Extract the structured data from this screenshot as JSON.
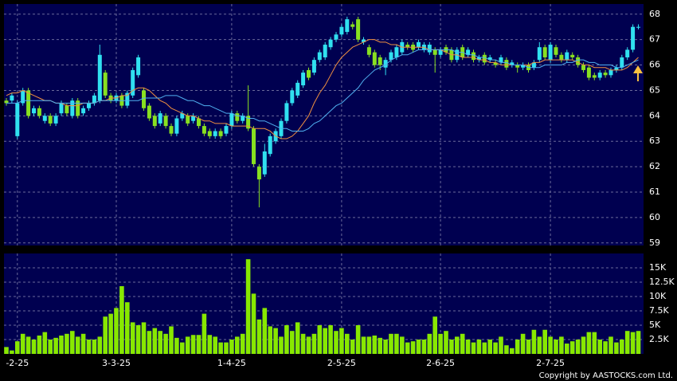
{
  "chart_data": [
    {
      "type": "candlestick",
      "categories": [
        null,
        null,
        "-2-25",
        null,
        null,
        null,
        null,
        null,
        null,
        null,
        null,
        null,
        null,
        null,
        null,
        null,
        null,
        null,
        null,
        null,
        "3-3-25",
        null,
        null,
        null,
        null,
        null,
        null,
        null,
        null,
        null,
        null,
        null,
        null,
        null,
        null,
        null,
        null,
        null,
        null,
        null,
        null,
        "1-4-25",
        null,
        null,
        null,
        null,
        null,
        null,
        null,
        null,
        null,
        null,
        null,
        null,
        null,
        null,
        null,
        null,
        null,
        null,
        null,
        "2-5-25",
        null,
        null,
        null,
        null,
        null,
        null,
        null,
        null,
        null,
        null,
        null,
        null,
        null,
        null,
        null,
        null,
        null,
        "2-6-25",
        null,
        null,
        null,
        null,
        null,
        null,
        null,
        null,
        null,
        null,
        null,
        null,
        null,
        null,
        null,
        null,
        null,
        null,
        null,
        "2-7-25",
        null,
        null,
        null,
        null,
        null,
        null,
        null,
        null,
        null,
        null,
        null,
        null,
        null,
        null,
        null,
        null
      ],
      "ohlc": [
        [
          64.6,
          64.7,
          64.4,
          64.5
        ],
        [
          64.6,
          64.9,
          64.5,
          64.8
        ],
        [
          63.2,
          64.6,
          63.1,
          64.5
        ],
        [
          64.5,
          65.1,
          64.4,
          65.0
        ],
        [
          65.0,
          65.1,
          63.9,
          64.0
        ],
        [
          64.1,
          64.4,
          64.0,
          64.3
        ],
        [
          64.3,
          64.4,
          63.9,
          64.0
        ],
        [
          63.8,
          64.1,
          63.7,
          64.0
        ],
        [
          64.0,
          64.1,
          63.6,
          63.7
        ],
        [
          63.7,
          64.1,
          63.6,
          64.0
        ],
        [
          64.1,
          64.6,
          64.0,
          64.5
        ],
        [
          64.4,
          64.5,
          64.0,
          64.1
        ],
        [
          64.0,
          64.7,
          63.9,
          64.6
        ],
        [
          64.6,
          64.7,
          63.9,
          64.0
        ],
        [
          64.1,
          64.4,
          64.0,
          64.3
        ],
        [
          64.3,
          64.6,
          64.2,
          64.5
        ],
        [
          64.5,
          64.9,
          64.4,
          64.8
        ],
        [
          64.6,
          66.8,
          64.5,
          66.4
        ],
        [
          65.7,
          65.8,
          64.7,
          64.8
        ],
        [
          64.8,
          64.9,
          64.5,
          64.6
        ],
        [
          64.6,
          64.9,
          64.5,
          64.8
        ],
        [
          64.8,
          64.9,
          64.3,
          64.4
        ],
        [
          64.4,
          65.0,
          64.3,
          64.9
        ],
        [
          64.8,
          65.9,
          64.7,
          65.8
        ],
        [
          65.6,
          66.4,
          65.5,
          66.3
        ],
        [
          65.0,
          65.1,
          64.2,
          64.3
        ],
        [
          64.4,
          64.5,
          63.8,
          63.9
        ],
        [
          64.0,
          64.1,
          63.5,
          63.6
        ],
        [
          63.7,
          64.2,
          63.6,
          64.1
        ],
        [
          64.0,
          64.1,
          63.5,
          63.6
        ],
        [
          63.6,
          63.7,
          63.2,
          63.3
        ],
        [
          63.3,
          64.0,
          63.2,
          63.9
        ],
        [
          63.9,
          64.2,
          63.8,
          64.1
        ],
        [
          64.0,
          64.1,
          63.6,
          63.7
        ],
        [
          63.8,
          64.1,
          63.7,
          64.0
        ],
        [
          63.9,
          64.0,
          63.5,
          63.6
        ],
        [
          63.6,
          63.7,
          63.2,
          63.3
        ],
        [
          63.4,
          63.5,
          63.1,
          63.2
        ],
        [
          63.2,
          63.5,
          63.1,
          63.4
        ],
        [
          63.4,
          63.5,
          63.1,
          63.2
        ],
        [
          63.3,
          63.7,
          63.2,
          63.6
        ],
        [
          63.6,
          64.2,
          63.5,
          64.1
        ],
        [
          64.1,
          64.2,
          63.7,
          63.8
        ],
        [
          63.8,
          64.1,
          63.7,
          64.0
        ],
        [
          64.0,
          65.2,
          63.4,
          63.5
        ],
        [
          63.5,
          63.6,
          62.0,
          62.1
        ],
        [
          62.0,
          62.1,
          60.4,
          61.5
        ],
        [
          61.7,
          62.9,
          61.6,
          62.6
        ],
        [
          62.5,
          63.3,
          62.4,
          63.2
        ],
        [
          63.0,
          63.5,
          62.9,
          63.4
        ],
        [
          63.2,
          63.9,
          63.1,
          63.8
        ],
        [
          63.8,
          64.6,
          63.7,
          64.5
        ],
        [
          64.5,
          65.1,
          64.4,
          65.0
        ],
        [
          64.8,
          65.4,
          64.7,
          65.3
        ],
        [
          65.2,
          65.8,
          65.1,
          65.7
        ],
        [
          65.8,
          65.9,
          65.4,
          65.5
        ],
        [
          65.7,
          66.3,
          65.6,
          66.2
        ],
        [
          66.2,
          66.6,
          66.1,
          66.5
        ],
        [
          66.3,
          66.9,
          66.2,
          66.8
        ],
        [
          66.7,
          67.1,
          66.6,
          67.0
        ],
        [
          67.0,
          67.3,
          66.9,
          67.2
        ],
        [
          67.2,
          67.6,
          67.1,
          67.5
        ],
        [
          67.3,
          67.9,
          67.2,
          67.8
        ],
        [
          67.6,
          67.7,
          67.4,
          67.5
        ],
        [
          67.8,
          67.9,
          66.9,
          67.0
        ],
        [
          66.9,
          67.1,
          66.8,
          67.0
        ],
        [
          66.7,
          66.8,
          66.3,
          66.4
        ],
        [
          66.5,
          66.6,
          65.9,
          66.0
        ],
        [
          66.3,
          66.4,
          65.8,
          66.0
        ],
        [
          65.9,
          66.3,
          65.6,
          66.2
        ],
        [
          66.2,
          66.6,
          66.1,
          66.5
        ],
        [
          66.3,
          66.8,
          66.2,
          66.7
        ],
        [
          66.5,
          67.0,
          66.4,
          66.9
        ],
        [
          66.8,
          66.9,
          66.6,
          66.7
        ],
        [
          66.8,
          66.9,
          66.5,
          66.6
        ],
        [
          66.7,
          67.0,
          66.6,
          66.9
        ],
        [
          66.6,
          66.9,
          66.5,
          66.8
        ],
        [
          66.5,
          66.9,
          66.4,
          66.8
        ],
        [
          66.6,
          66.7,
          65.7,
          66.4
        ],
        [
          66.4,
          66.7,
          66.3,
          66.6
        ],
        [
          66.7,
          66.8,
          66.4,
          66.5
        ],
        [
          66.6,
          66.7,
          66.1,
          66.2
        ],
        [
          66.2,
          66.7,
          66.1,
          66.6
        ],
        [
          66.7,
          66.8,
          66.2,
          66.3
        ],
        [
          66.4,
          66.7,
          66.3,
          66.6
        ],
        [
          66.5,
          66.6,
          66.1,
          66.2
        ],
        [
          66.2,
          66.4,
          66.1,
          66.3
        ],
        [
          66.4,
          66.5,
          66.0,
          66.1
        ],
        [
          66.2,
          66.4,
          66.1,
          66.3
        ],
        [
          66.1,
          66.2,
          65.9,
          66.0
        ],
        [
          66.1,
          66.4,
          66.0,
          66.3
        ],
        [
          66.2,
          66.3,
          65.8,
          65.9
        ],
        [
          66.0,
          66.2,
          65.9,
          66.1
        ],
        [
          66.0,
          66.1,
          65.7,
          65.9
        ],
        [
          65.9,
          66.1,
          65.8,
          66.0
        ],
        [
          66.0,
          66.1,
          65.7,
          65.8
        ],
        [
          65.9,
          66.2,
          65.8,
          66.1
        ],
        [
          66.2,
          66.9,
          66.1,
          66.7
        ],
        [
          66.7,
          66.8,
          66.2,
          66.3
        ],
        [
          66.2,
          66.9,
          66.1,
          66.8
        ],
        [
          66.7,
          66.8,
          66.3,
          66.4
        ],
        [
          66.4,
          66.5,
          66.1,
          66.2
        ],
        [
          66.2,
          66.6,
          66.1,
          66.5
        ],
        [
          66.4,
          66.5,
          66.2,
          66.3
        ],
        [
          66.3,
          66.4,
          65.9,
          66.0
        ],
        [
          66.0,
          66.1,
          65.7,
          65.8
        ],
        [
          65.9,
          66.0,
          65.4,
          65.5
        ],
        [
          65.6,
          65.7,
          65.4,
          65.5
        ],
        [
          65.5,
          65.8,
          65.4,
          65.7
        ],
        [
          65.7,
          65.8,
          65.5,
          65.6
        ],
        [
          65.6,
          65.9,
          65.5,
          65.8
        ],
        [
          65.8,
          66.0,
          65.7,
          65.9
        ],
        [
          65.9,
          66.4,
          65.8,
          66.3
        ],
        [
          66.3,
          66.7,
          66.2,
          66.6
        ],
        [
          66.6,
          67.6,
          66.5,
          67.5
        ],
        [
          67.5,
          67.6,
          67.4,
          67.5
        ]
      ],
      "up_color": "#30e0f0",
      "down_color": "#88e020",
      "series": [
        {
          "color": "#f09040",
          "values": [
            64.8,
            64.9,
            64.9,
            65.0,
            64.9,
            64.8,
            64.7,
            64.6,
            64.6,
            64.5,
            64.5,
            64.4,
            64.4,
            64.4,
            64.5,
            64.5,
            64.5,
            64.6,
            64.6,
            64.7,
            64.7,
            64.8,
            64.8,
            65.0,
            65.1,
            65.1,
            65.0,
            64.8,
            64.6,
            64.5,
            64.3,
            64.2,
            64.1,
            64.0,
            64.0,
            63.9,
            63.8,
            63.8,
            63.7,
            63.7,
            63.7,
            63.6,
            63.6,
            63.6,
            63.6,
            63.5,
            63.5,
            63.5,
            63.4,
            63.2,
            63.1,
            63.1,
            63.2,
            63.4,
            63.7,
            64.0,
            64.5,
            64.9,
            65.2,
            65.6,
            66.0,
            66.3,
            66.5,
            66.7,
            66.8,
            66.9,
            67.0,
            67.0,
            66.9,
            66.9,
            66.8,
            66.8,
            66.7,
            66.7,
            66.7,
            66.7,
            66.7,
            66.6,
            66.6,
            66.6,
            66.5,
            66.4,
            66.4,
            66.3,
            66.3,
            66.3,
            66.2,
            66.2,
            66.1,
            66.1,
            66.0,
            66.0,
            66.0,
            66.0,
            66.0,
            66.0,
            66.1,
            66.1,
            66.2,
            66.2,
            66.2,
            66.2,
            66.2,
            66.2,
            66.1,
            66.0,
            66.0,
            65.9,
            65.9,
            65.9,
            65.8,
            65.8,
            65.8,
            65.9,
            66.1,
            66.3
          ]
        },
        {
          "color": "#50b0f0",
          "values": [
            64.5,
            64.5,
            64.5,
            64.6,
            64.6,
            64.6,
            64.6,
            64.6,
            64.6,
            64.5,
            64.5,
            64.5,
            64.5,
            64.5,
            64.5,
            64.5,
            64.5,
            64.6,
            64.6,
            64.6,
            64.6,
            64.6,
            64.6,
            64.6,
            64.6,
            64.7,
            64.7,
            64.7,
            64.7,
            64.8,
            64.8,
            64.8,
            64.7,
            64.6,
            64.6,
            64.5,
            64.4,
            64.4,
            64.3,
            64.2,
            64.1,
            64.1,
            64.0,
            64.0,
            63.9,
            63.9,
            63.8,
            63.8,
            63.7,
            63.6,
            63.5,
            63.5,
            63.4,
            63.4,
            63.4,
            63.5,
            63.7,
            63.8,
            64.0,
            64.2,
            64.4,
            64.5,
            64.7,
            64.9,
            65.1,
            65.4,
            65.6,
            65.8,
            65.9,
            66.0,
            66.2,
            66.3,
            66.4,
            66.4,
            66.5,
            66.6,
            66.6,
            66.6,
            66.6,
            66.6,
            66.6,
            66.6,
            66.5,
            66.5,
            66.4,
            66.4,
            66.3,
            66.3,
            66.2,
            66.2,
            66.1,
            66.1,
            66.0,
            66.0,
            66.0,
            65.9,
            65.9,
            65.9,
            66.0,
            66.0,
            66.0,
            66.0,
            66.1,
            66.1,
            66.2,
            66.2,
            66.1,
            66.1,
            66.0,
            66.0,
            66.0,
            65.9,
            65.9,
            66.0,
            66.1,
            66.2
          ]
        }
      ],
      "ylim": [
        58.9,
        68.4
      ],
      "yticks": [
        59,
        60,
        61,
        62,
        63,
        64,
        65,
        66,
        67,
        68
      ],
      "grid": true
    },
    {
      "type": "bar",
      "values": [
        1200,
        600,
        2200,
        3500,
        3000,
        2500,
        3200,
        3800,
        2500,
        2800,
        3200,
        3500,
        4000,
        3000,
        3500,
        2500,
        2500,
        3000,
        6500,
        7000,
        8000,
        11800,
        9000,
        5500,
        5000,
        5500,
        4000,
        4500,
        4000,
        3500,
        4800,
        2800,
        2000,
        3000,
        3300,
        3300,
        7000,
        3300,
        3000,
        2000,
        2000,
        2500,
        3000,
        3500,
        16500,
        10500,
        6000,
        8000,
        4800,
        4500,
        3000,
        5000,
        4000,
        5500,
        3500,
        3000,
        3500,
        5000,
        4500,
        5000,
        4000,
        4500,
        3500,
        2500,
        5000,
        3000,
        3000,
        3200,
        2800,
        2500,
        3500,
        3500,
        3000,
        2000,
        2200,
        2500,
        2500,
        3500,
        6500,
        3500,
        4000,
        2500,
        3000,
        3500,
        2500,
        2000,
        2500,
        2000,
        2500,
        2000,
        3000,
        1500,
        1000,
        2500,
        3500,
        2500,
        4200,
        3000,
        4200,
        3000,
        2500,
        3000,
        1800,
        2200,
        2500,
        3000,
        3800,
        3800,
        2500,
        2200,
        3000,
        2000,
        2500,
        4000,
        3800,
        4000
      ],
      "color": "#88e800",
      "ylim": [
        0,
        17500
      ],
      "yticks": [
        {
          "value": 2500,
          "label": "2.5K"
        },
        {
          "value": 5000,
          "label": "5K"
        },
        {
          "value": 7500,
          "label": "7.5K"
        },
        {
          "value": 10000,
          "label": "10K"
        },
        {
          "value": 12500,
          "label": "12.5K"
        },
        {
          "value": 15000,
          "label": "15K"
        }
      ],
      "grid": true
    }
  ],
  "copyright": "Copyright by AASTOCKS.com Ltd."
}
